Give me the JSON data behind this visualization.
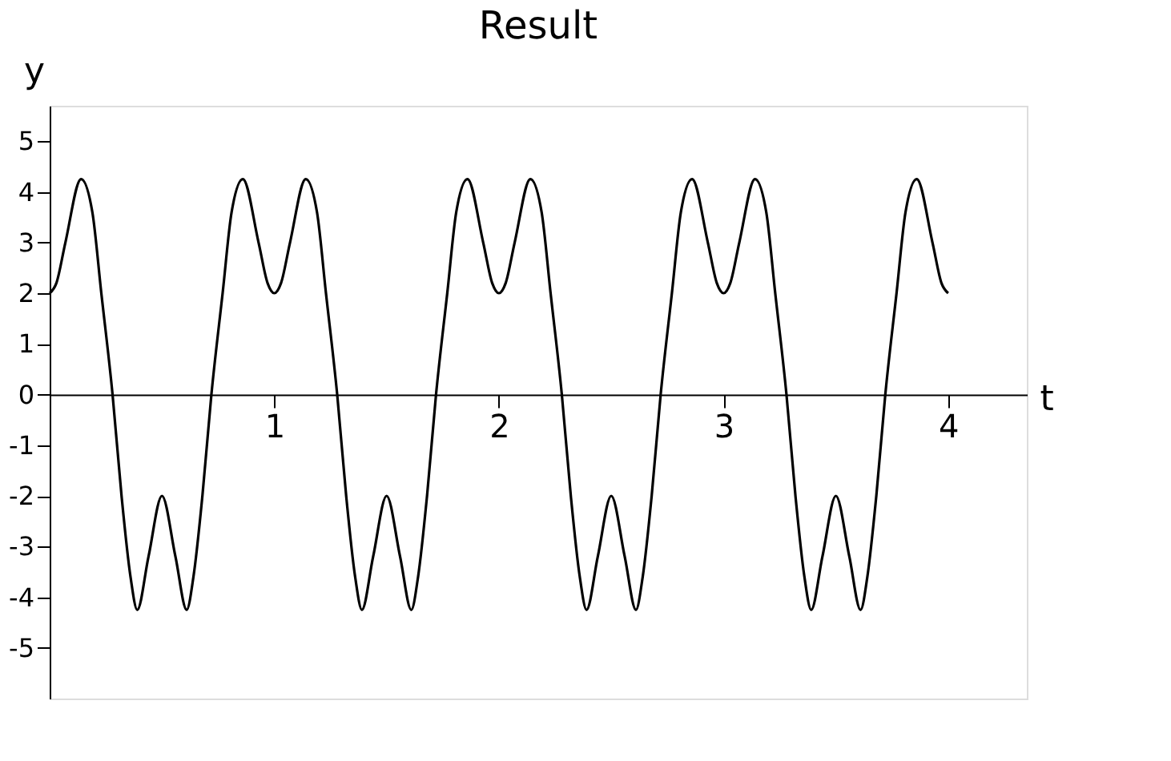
{
  "chart_data": {
    "type": "line",
    "title": "Result",
    "xlabel": "t",
    "ylabel": "y",
    "x": [
      0,
      0.03,
      0.07,
      0.14,
      0.19,
      0.23,
      0.28,
      0.32,
      0.36,
      0.39,
      0.44,
      0.5,
      0.56,
      0.61,
      0.64,
      0.68,
      0.72,
      0.77,
      0.81,
      0.86,
      0.93,
      0.97,
      1,
      1.03,
      1.07,
      1.14,
      1.19,
      1.23,
      1.28,
      1.32,
      1.36,
      1.39,
      1.44,
      1.5,
      1.56,
      1.61,
      1.64,
      1.68,
      1.72,
      1.77,
      1.81,
      1.86,
      1.93,
      1.97,
      2,
      2.03,
      2.07,
      2.14,
      2.19,
      2.23,
      2.28,
      2.32,
      2.36,
      2.39,
      2.44,
      2.5,
      2.56,
      2.61,
      2.64,
      2.68,
      2.72,
      2.77,
      2.81,
      2.86,
      2.93,
      2.97,
      3,
      3.03,
      3.07,
      3.14,
      3.19,
      3.23,
      3.28,
      3.32,
      3.36,
      3.39,
      3.44,
      3.5,
      3.56,
      3.61,
      3.64,
      3.68,
      3.72,
      3.77,
      3.81,
      3.86,
      3.93,
      3.97,
      4
    ],
    "series": [
      {
        "color": "#000000",
        "values": [
          2,
          2.2,
          3,
          4.25,
          3.6,
          2,
          0,
          -2,
          -3.6,
          -4.25,
          -3.2,
          -2,
          -3.2,
          -4.25,
          -3.6,
          -2,
          0,
          2,
          3.6,
          4.25,
          3,
          2.2,
          2,
          2.2,
          3,
          4.25,
          3.6,
          2,
          0,
          -2,
          -3.6,
          -4.25,
          -3.2,
          -2,
          -3.2,
          -4.25,
          -3.6,
          -2,
          0,
          2,
          3.6,
          4.25,
          3,
          2.2,
          2,
          2.2,
          3,
          4.25,
          3.6,
          2,
          0,
          -2,
          -3.6,
          -4.25,
          -3.2,
          -2,
          -3.2,
          -4.25,
          -3.6,
          -2,
          0,
          2,
          3.6,
          4.25,
          3,
          2.2,
          2,
          2.2,
          3,
          4.25,
          3.6,
          2,
          0,
          -2,
          -3.6,
          -4.25,
          -3.2,
          -2,
          -3.2,
          -4.25,
          -3.6,
          -2,
          0,
          2,
          3.6,
          4.25,
          3,
          2.2,
          2
        ]
      }
    ],
    "xlim": [
      0,
      4.35
    ],
    "ylim": [
      -6,
      5.7
    ],
    "xticks": [
      1,
      2,
      3,
      4
    ],
    "yticks": [
      -5,
      -4,
      -3,
      -2,
      -1,
      0,
      1,
      2,
      3,
      4,
      5
    ],
    "grid": false,
    "legend": false,
    "marker": "none",
    "line_style": "solid"
  }
}
